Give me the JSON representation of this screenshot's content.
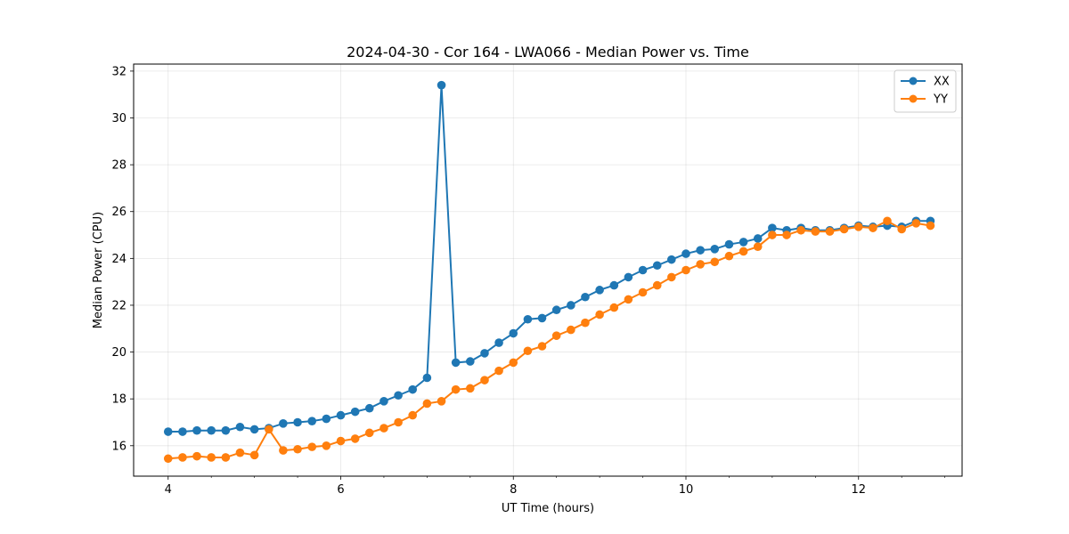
{
  "chart_data": {
    "type": "line",
    "title": "2024-04-30 - Cor 164 - LWA066 - Median Power vs. Time",
    "xlabel": "UT Time (hours)",
    "ylabel": "Median Power (CPU)",
    "xlim": [
      3.6,
      13.2
    ],
    "ylim": [
      14.7,
      32.3
    ],
    "xticks": [
      4,
      6,
      8,
      10,
      12
    ],
    "yticks": [
      16,
      18,
      20,
      22,
      24,
      26,
      28,
      30,
      32
    ],
    "grid": true,
    "legend_position": "top-right",
    "x": [
      4.0,
      4.167,
      4.333,
      4.5,
      4.667,
      4.833,
      5.0,
      5.167,
      5.333,
      5.5,
      5.667,
      5.833,
      6.0,
      6.167,
      6.333,
      6.5,
      6.667,
      6.833,
      7.0,
      7.167,
      7.333,
      7.5,
      7.667,
      7.833,
      8.0,
      8.167,
      8.333,
      8.5,
      8.667,
      8.833,
      9.0,
      9.167,
      9.333,
      9.5,
      9.667,
      9.833,
      10.0,
      10.167,
      10.333,
      10.5,
      10.667,
      10.833,
      11.0,
      11.167,
      11.333,
      11.5,
      11.667,
      11.833,
      12.0,
      12.167,
      12.333,
      12.5,
      12.667,
      12.833
    ],
    "series": [
      {
        "name": "XX",
        "color": "#1f77b4",
        "values": [
          16.6,
          16.6,
          16.65,
          16.65,
          16.65,
          16.8,
          16.7,
          16.75,
          16.95,
          17.0,
          17.05,
          17.15,
          17.3,
          17.45,
          17.6,
          17.9,
          18.15,
          18.4,
          18.9,
          31.4,
          19.55,
          19.6,
          19.95,
          20.4,
          20.8,
          21.4,
          21.45,
          21.8,
          22.0,
          22.35,
          22.65,
          22.85,
          23.2,
          23.5,
          23.7,
          23.95,
          24.2,
          24.35,
          24.4,
          24.6,
          24.7,
          24.85,
          25.3,
          25.2,
          25.3,
          25.2,
          25.2,
          25.3,
          25.4,
          25.35,
          25.4,
          25.35,
          25.6,
          25.6
        ]
      },
      {
        "name": "YY",
        "color": "#ff7f0e",
        "values": [
          15.45,
          15.5,
          15.55,
          15.5,
          15.5,
          15.7,
          15.6,
          16.7,
          15.8,
          15.85,
          15.95,
          16.0,
          16.2,
          16.3,
          16.55,
          16.75,
          17.0,
          17.3,
          17.8,
          17.9,
          18.4,
          18.45,
          18.8,
          19.2,
          19.55,
          20.05,
          20.25,
          20.7,
          20.95,
          21.25,
          21.6,
          21.9,
          22.25,
          22.55,
          22.85,
          23.2,
          23.5,
          23.75,
          23.85,
          24.1,
          24.3,
          24.5,
          25.0,
          25.0,
          25.2,
          25.15,
          25.15,
          25.25,
          25.35,
          25.3,
          25.6,
          25.25,
          25.5,
          25.4
        ]
      }
    ]
  }
}
